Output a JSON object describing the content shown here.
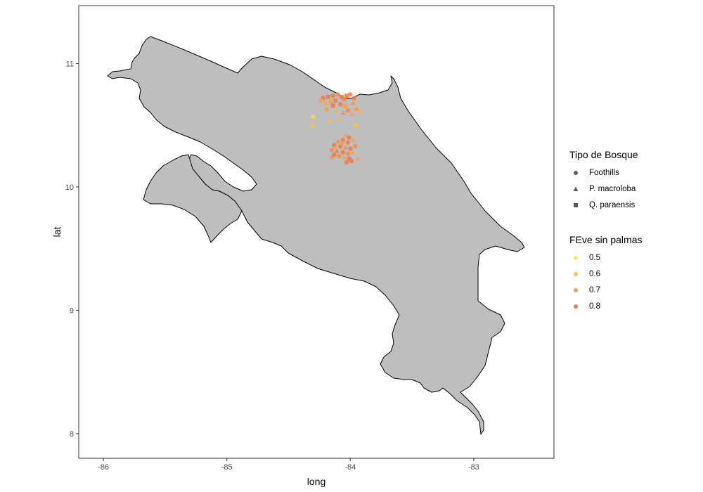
{
  "chart_data": {
    "type": "scatter",
    "title": "",
    "xlabel": "long",
    "ylabel": "lat",
    "xlim": [
      -86.2,
      -82.35
    ],
    "ylim": [
      7.8,
      11.47
    ],
    "x_ticks": [
      -86,
      -85,
      -84,
      -83
    ],
    "x_tick_labels": [
      "-86",
      "-85",
      "-84",
      "-83"
    ],
    "y_ticks": [
      8,
      9,
      10,
      11
    ],
    "y_tick_labels": [
      "8",
      "9",
      "10",
      "11"
    ],
    "grid": false,
    "background_map": "Costa Rica",
    "map_fill": "#bebebe",
    "map_stroke": "#000000",
    "shape_legend": {
      "title": "Tipo de Bosque",
      "entries": [
        {
          "label": "Foothills",
          "shape": "circle"
        },
        {
          "label": "P. macroloba",
          "shape": "triangle"
        },
        {
          "label": "Q. paraensis",
          "shape": "square"
        }
      ]
    },
    "color_legend": {
      "title": "FEve sin palmas",
      "entries": [
        {
          "label": "0.5",
          "value": 0.5,
          "color": "#fde55e"
        },
        {
          "label": "0.6",
          "value": 0.6,
          "color": "#fbc04a"
        },
        {
          "label": "0.7",
          "value": 0.7,
          "color": "#f8a04c"
        },
        {
          "label": "0.8",
          "value": 0.8,
          "color": "#f07a49"
        }
      ]
    },
    "legend_position": "right",
    "points": [
      {
        "x": -84.22,
        "y": 10.72,
        "shape": "square",
        "feve": 0.8
      },
      {
        "x": -84.18,
        "y": 10.73,
        "shape": "square",
        "feve": 0.8
      },
      {
        "x": -84.14,
        "y": 10.74,
        "shape": "circle",
        "feve": 0.8
      },
      {
        "x": -84.1,
        "y": 10.75,
        "shape": "circle",
        "feve": 0.75
      },
      {
        "x": -84.07,
        "y": 10.73,
        "shape": "square",
        "feve": 0.8
      },
      {
        "x": -84.03,
        "y": 10.74,
        "shape": "square",
        "feve": 0.8
      },
      {
        "x": -84.0,
        "y": 10.75,
        "shape": "circle",
        "feve": 0.8
      },
      {
        "x": -84.05,
        "y": 10.71,
        "shape": "square",
        "feve": 0.75
      },
      {
        "x": -84.12,
        "y": 10.7,
        "shape": "square",
        "feve": 0.8
      },
      {
        "x": -84.16,
        "y": 10.69,
        "shape": "circle",
        "feve": 0.7
      },
      {
        "x": -84.2,
        "y": 10.68,
        "shape": "triangle",
        "feve": 0.7
      },
      {
        "x": -84.24,
        "y": 10.7,
        "shape": "square",
        "feve": 0.7
      },
      {
        "x": -84.08,
        "y": 10.67,
        "shape": "circle",
        "feve": 0.8
      },
      {
        "x": -84.04,
        "y": 10.66,
        "shape": "square",
        "feve": 0.7
      },
      {
        "x": -83.98,
        "y": 10.68,
        "shape": "triangle",
        "feve": 0.75
      },
      {
        "x": -83.97,
        "y": 10.72,
        "shape": "circle",
        "feve": 0.8
      },
      {
        "x": -84.14,
        "y": 10.66,
        "shape": "square",
        "feve": 0.8
      },
      {
        "x": -84.19,
        "y": 10.63,
        "shape": "square",
        "feve": 0.7
      },
      {
        "x": -84.11,
        "y": 10.62,
        "shape": "triangle",
        "feve": 0.65
      },
      {
        "x": -84.02,
        "y": 10.62,
        "shape": "square",
        "feve": 0.75
      },
      {
        "x": -83.95,
        "y": 10.63,
        "shape": "square",
        "feve": 0.7
      },
      {
        "x": -83.92,
        "y": 10.61,
        "shape": "triangle",
        "feve": 0.65
      },
      {
        "x": -84.06,
        "y": 10.6,
        "shape": "triangle",
        "feve": 0.75
      },
      {
        "x": -83.99,
        "y": 10.59,
        "shape": "triangle",
        "feve": 0.7
      },
      {
        "x": -84.3,
        "y": 10.57,
        "shape": "circle",
        "feve": 0.55
      },
      {
        "x": -84.31,
        "y": 10.5,
        "shape": "circle",
        "feve": 0.6
      },
      {
        "x": -84.17,
        "y": 10.53,
        "shape": "triangle",
        "feve": 0.6
      },
      {
        "x": -84.09,
        "y": 10.55,
        "shape": "triangle",
        "feve": 0.65
      },
      {
        "x": -83.96,
        "y": 10.5,
        "shape": "circle",
        "feve": 0.6
      },
      {
        "x": -84.04,
        "y": 10.42,
        "shape": "triangle",
        "feve": 0.7
      },
      {
        "x": -84.01,
        "y": 10.4,
        "shape": "circle",
        "feve": 0.8
      },
      {
        "x": -84.06,
        "y": 10.38,
        "shape": "circle",
        "feve": 0.8
      },
      {
        "x": -84.1,
        "y": 10.37,
        "shape": "triangle",
        "feve": 0.75
      },
      {
        "x": -84.02,
        "y": 10.36,
        "shape": "circle",
        "feve": 0.85
      },
      {
        "x": -83.98,
        "y": 10.38,
        "shape": "triangle",
        "feve": 0.7
      },
      {
        "x": -84.13,
        "y": 10.34,
        "shape": "circle",
        "feve": 0.8
      },
      {
        "x": -84.08,
        "y": 10.33,
        "shape": "circle",
        "feve": 0.8
      },
      {
        "x": -84.04,
        "y": 10.32,
        "shape": "triangle",
        "feve": 0.75
      },
      {
        "x": -84.0,
        "y": 10.31,
        "shape": "circle",
        "feve": 0.8
      },
      {
        "x": -83.96,
        "y": 10.33,
        "shape": "circle",
        "feve": 0.75
      },
      {
        "x": -84.15,
        "y": 10.3,
        "shape": "circle",
        "feve": 0.75
      },
      {
        "x": -84.11,
        "y": 10.29,
        "shape": "triangle",
        "feve": 0.8
      },
      {
        "x": -84.06,
        "y": 10.28,
        "shape": "circle",
        "feve": 0.8
      },
      {
        "x": -84.02,
        "y": 10.27,
        "shape": "circle",
        "feve": 0.75
      },
      {
        "x": -83.98,
        "y": 10.28,
        "shape": "triangle",
        "feve": 0.7
      },
      {
        "x": -84.13,
        "y": 10.26,
        "shape": "circle",
        "feve": 0.8
      },
      {
        "x": -84.09,
        "y": 10.25,
        "shape": "circle",
        "feve": 0.75
      },
      {
        "x": -84.05,
        "y": 10.24,
        "shape": "triangle",
        "feve": 0.7
      },
      {
        "x": -84.01,
        "y": 10.23,
        "shape": "circle",
        "feve": 0.85
      },
      {
        "x": -83.99,
        "y": 10.21,
        "shape": "circle",
        "feve": 0.8
      },
      {
        "x": -83.94,
        "y": 10.23,
        "shape": "triangle",
        "feve": 0.7
      },
      {
        "x": -84.03,
        "y": 10.2,
        "shape": "circle",
        "feve": 0.8
      },
      {
        "x": -84.15,
        "y": 10.24,
        "shape": "triangle",
        "feve": 0.75
      },
      {
        "x": -84.07,
        "y": 10.35,
        "shape": "circle",
        "feve": 0.7
      },
      {
        "x": -84.12,
        "y": 10.32,
        "shape": "triangle",
        "feve": 0.7
      }
    ]
  }
}
